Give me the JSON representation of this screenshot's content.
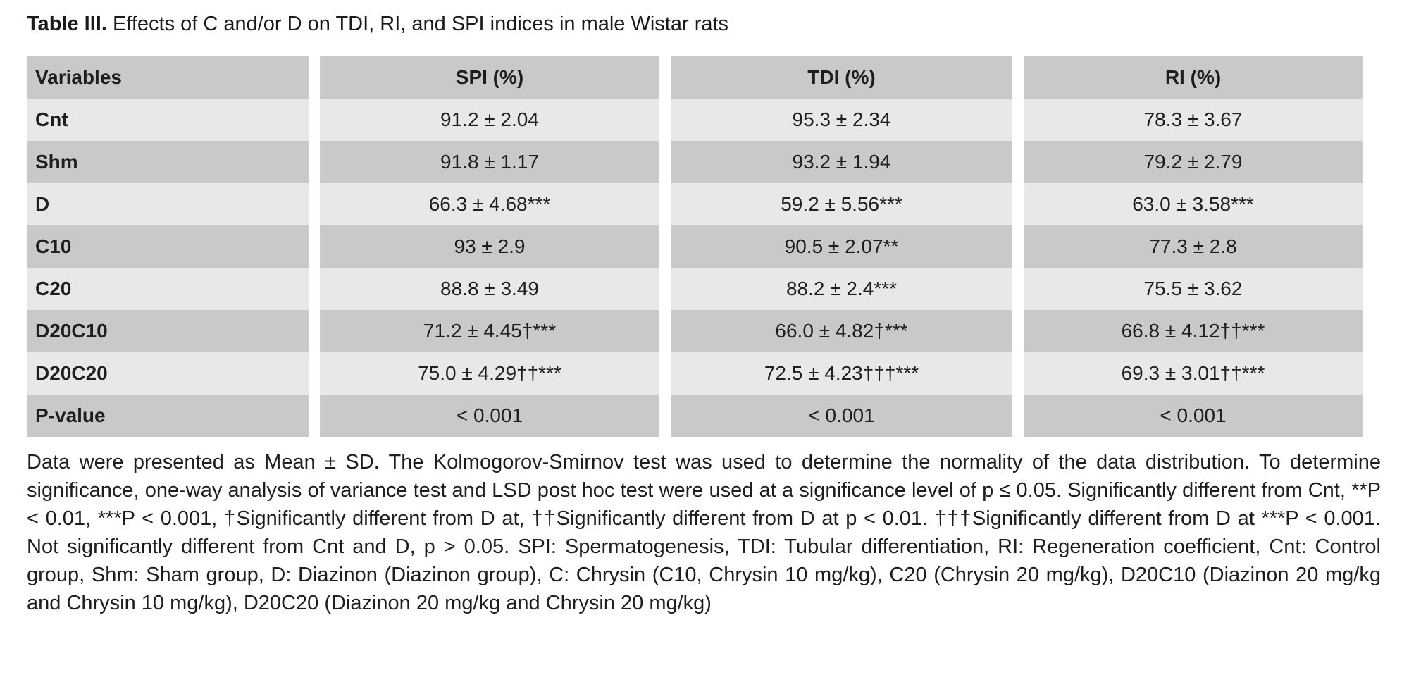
{
  "title": {
    "prefix": "Table III.",
    "text": " Effects of C and/or D on TDI, RI, and SPI indices in male Wistar rats"
  },
  "table": {
    "columns": [
      "Variables",
      "SPI (%)",
      "TDI (%)",
      "RI (%)"
    ],
    "rows": [
      {
        "label": "Cnt",
        "spi": "91.2 ± 2.04",
        "tdi": "95.3 ± 2.34",
        "ri": "78.3 ± 3.67"
      },
      {
        "label": "Shm",
        "spi": "91.8 ± 1.17",
        "tdi": "93.2 ± 1.94",
        "ri": "79.2 ± 2.79"
      },
      {
        "label": "D",
        "spi": "66.3 ± 4.68***",
        "tdi": "59.2 ± 5.56***",
        "ri": "63.0 ± 3.58***"
      },
      {
        "label": "C10",
        "spi": "93 ± 2.9",
        "tdi": "90.5 ± 2.07**",
        "ri": "77.3 ± 2.8"
      },
      {
        "label": "C20",
        "spi": "88.8 ± 3.49",
        "tdi": "88.2 ± 2.4***",
        "ri": "75.5 ± 3.62"
      },
      {
        "label": "D20C10",
        "spi": "71.2 ± 4.45†***",
        "tdi": "66.0 ± 4.82†***",
        "ri": "66.8 ± 4.12††***"
      },
      {
        "label": "D20C20",
        "spi": "75.0 ± 4.29††***",
        "tdi": "72.5 ± 4.23†††***",
        "ri": "69.3 ± 3.01††***"
      },
      {
        "label": "P-value",
        "spi": "< 0.001",
        "tdi": "< 0.001",
        "ri": "< 0.001"
      }
    ]
  },
  "footnote": {
    "text": "Data were presented as Mean ± SD. The Kolmogorov-Smirnov test was used to determine the normality of the data distribution. To determine significance, one-way analysis of variance test and LSD post hoc test were used at a significance level of p ≤ 0.05. Significantly different from Cnt, **P < 0.01, ***P < 0.001, †Significantly different from D at, ††Significantly different from D at p < 0.01. †††Significantly different from D at ***P < 0.001. Not significantly different from Cnt and D, p > 0.05. SPI: Spermatogenesis, TDI: Tubular differentiation, RI: Regeneration coefficient, Cnt: Control group, Shm: Sham group, D: Diazinon (Diazinon group), C: Chrysin (C10, Chrysin 10 mg/kg), C20 (Chrysin 20 mg/kg), D20C10 (Diazinon 20 mg/kg and Chrysin 10 mg/kg), D20C20 (Diazinon 20 mg/kg and Chrysin 20 mg/kg)"
  },
  "colors": {
    "header_bg": "#c9c9c9",
    "row_dark_bg": "#c9c9c9",
    "row_light_bg": "#e8e8e8",
    "text": "#1e1e1e",
    "page_bg": "#ffffff"
  }
}
